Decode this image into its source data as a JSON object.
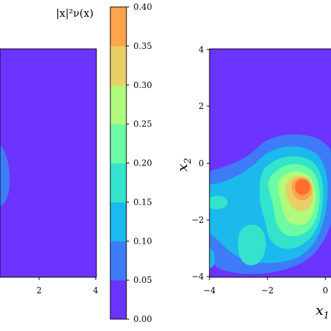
{
  "chart_data": [
    {
      "type": "heatmap",
      "plot_kind": "filled contour",
      "title": "",
      "xlabel": "",
      "ylabel": "",
      "xlim": [
        -4,
        4
      ],
      "ylim": [
        -4,
        4
      ],
      "x_ticks_visible": [
        "2",
        "4"
      ],
      "y_ticks_visible": [],
      "grid": false,
      "features": [
        {
          "name": "faint blob near left edge",
          "center": [
            -4.1,
            0.0
          ],
          "level": 0.05
        }
      ]
    },
    {
      "type": "heatmap",
      "plot_kind": "filled contour",
      "title": "",
      "xlabel": "x_1",
      "ylabel": "x_2",
      "xlim": [
        -4,
        4
      ],
      "ylim": [
        -4,
        4
      ],
      "x_ticks": [
        "−4",
        "−2",
        "0"
      ],
      "y_ticks": [
        "4",
        "2",
        "0",
        "−2",
        "−4"
      ],
      "grid": false,
      "features": [
        {
          "name": "main peak",
          "center": [
            -0.6,
            -0.6
          ],
          "max_level": 0.375
        },
        {
          "name": "lobe lower-left",
          "center": [
            -2.8,
            -2.6
          ],
          "level": 0.15
        },
        {
          "name": "lobe left",
          "center": [
            -3.6,
            -1.2
          ],
          "level": 0.15
        },
        {
          "name": "small spot bottom-left",
          "center": [
            -3.9,
            -3.3
          ],
          "level": 0.1
        }
      ]
    }
  ],
  "colorbar": {
    "label": "|x|²ν(x)",
    "levels": [
      0.0,
      0.05,
      0.1,
      0.15,
      0.2,
      0.25,
      0.3,
      0.35,
      0.4
    ],
    "tick_labels": [
      "0.00",
      "0.05",
      "0.10",
      "0.15",
      "0.20",
      "0.25",
      "0.30",
      "0.35",
      "0.40"
    ],
    "colors": [
      "#6b33ff",
      "#3d7cf6",
      "#1cb9ed",
      "#34e3cc",
      "#6afba3",
      "#b0fa7c",
      "#e9cf68",
      "#ffa34c",
      "#ff6e2e"
    ]
  },
  "labels": {
    "left_x_ticks": [
      "2",
      "4"
    ],
    "right_x_ticks": [
      "−4",
      "−2",
      "0"
    ],
    "right_y_ticks": [
      "4",
      "2",
      "0",
      "−2",
      "−4"
    ],
    "right_xlabel": "x",
    "right_xlabel_sub": "1",
    "right_ylabel": "x",
    "right_ylabel_sub": "2"
  }
}
